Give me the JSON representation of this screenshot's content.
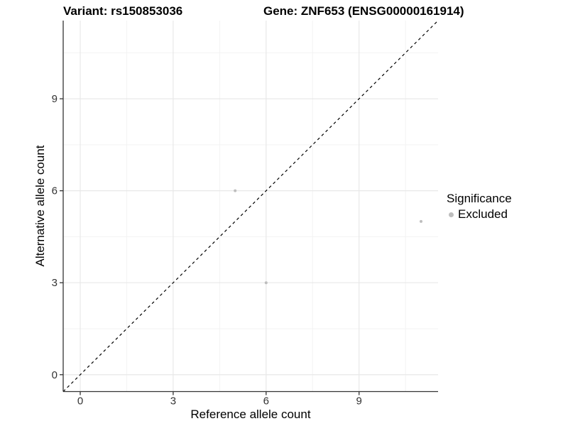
{
  "chart_data": {
    "type": "scatter",
    "title_left": "Variant: rs150853036",
    "title_right": "Gene: ZNF653 (ENSG00000161914)",
    "xlabel": "Reference allele count",
    "ylabel": "Alternative allele count",
    "xlim": [
      -0.55,
      11.55
    ],
    "ylim": [
      -0.55,
      11.55
    ],
    "xticks": [
      0,
      3,
      6,
      9
    ],
    "yticks": [
      0,
      3,
      6,
      9
    ],
    "xminor": [
      1.5,
      4.5,
      7.5,
      10.5
    ],
    "yminor": [
      1.5,
      4.5,
      7.5,
      10.5
    ],
    "grid": true,
    "points": [
      {
        "x": 5,
        "y": 6,
        "significance": "Excluded"
      },
      {
        "x": 6,
        "y": 3,
        "significance": "Excluded"
      },
      {
        "x": 11,
        "y": 5,
        "significance": "Excluded"
      }
    ],
    "identity_line": {
      "style": "dashed",
      "equation": "y = x",
      "color": "#000000"
    },
    "legend": {
      "title": "Significance",
      "position": "right",
      "entries": [
        {
          "label": "Excluded",
          "color": "#bdbdbd",
          "marker": "circle"
        }
      ]
    },
    "colors": {
      "point": "#bdbdbd",
      "grid_major": "#e8e8e8",
      "grid_minor": "#f3f3f3",
      "axis_line": "#333333",
      "tick_text": "#333333",
      "background": "#ffffff"
    }
  }
}
